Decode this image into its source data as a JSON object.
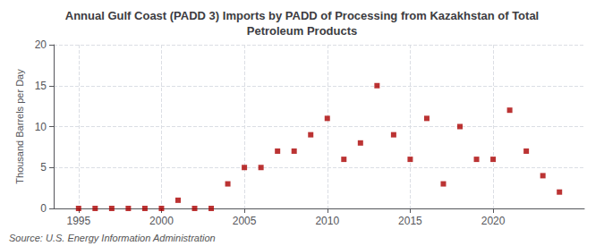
{
  "chart_data": {
    "type": "scatter",
    "title": "Annual Gulf Coast (PADD 3) Imports by PADD of Processing from Kazakhstan of Total\nPetroleum Products",
    "ylabel": "Thousand Barrels per Day",
    "annotations": [
      "Source: U.S. Energy Information Administration"
    ],
    "x": [
      1995,
      1996,
      1997,
      1998,
      1999,
      2000,
      2001,
      2002,
      2003,
      2004,
      2005,
      2006,
      2007,
      2008,
      2009,
      2010,
      2011,
      2012,
      2013,
      2014,
      2015,
      2016,
      2017,
      2018,
      2019,
      2020,
      2021,
      2022,
      2023,
      2024
    ],
    "values": [
      0,
      0,
      0,
      0,
      0,
      0,
      1,
      0,
      0,
      3,
      5,
      5,
      7,
      7,
      9,
      11,
      6,
      8,
      15,
      9,
      6,
      11,
      3,
      10,
      6,
      6,
      12,
      7,
      4,
      2
    ],
    "color": "#aa0000",
    "marker": "square",
    "xlim": [
      1993.5,
      2025.5
    ],
    "xticks": [
      1995,
      2000,
      2005,
      2010,
      2015,
      2020
    ],
    "ylim": [
      0,
      20
    ],
    "yticks": [
      0,
      5,
      10,
      15,
      20
    ],
    "grid": true
  }
}
